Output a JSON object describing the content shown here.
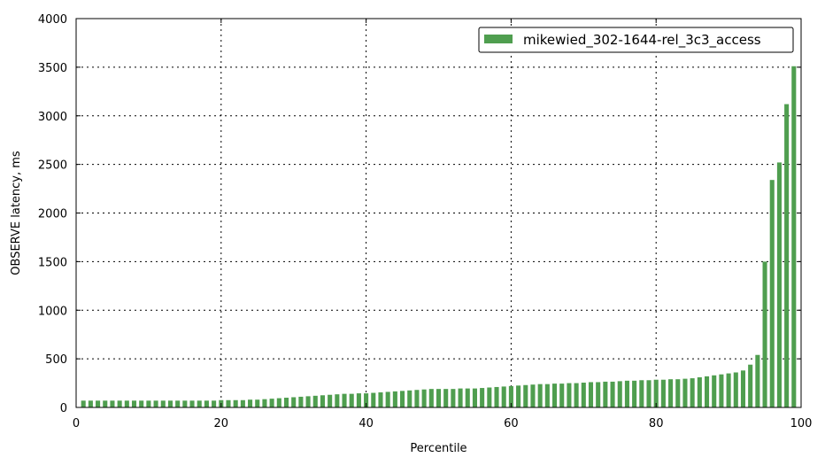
{
  "chart_data": {
    "type": "bar",
    "xlabel": "Percentile",
    "ylabel": "OBSERVE latency, ms",
    "xlim": [
      0,
      100
    ],
    "ylim": [
      0,
      4000
    ],
    "xticks": [
      0,
      20,
      40,
      60,
      80,
      100
    ],
    "yticks": [
      0,
      500,
      1000,
      1500,
      2000,
      2500,
      3000,
      3500,
      4000
    ],
    "grid": true,
    "legend_position": "top-right",
    "series": [
      {
        "name": "mikewied_302-1644-rel_3c3_access",
        "color": "#4f9e4f",
        "x": [
          1,
          2,
          3,
          4,
          5,
          6,
          7,
          8,
          9,
          10,
          11,
          12,
          13,
          14,
          15,
          16,
          17,
          18,
          19,
          20,
          21,
          22,
          23,
          24,
          25,
          26,
          27,
          28,
          29,
          30,
          31,
          32,
          33,
          34,
          35,
          36,
          37,
          38,
          39,
          40,
          41,
          42,
          43,
          44,
          45,
          46,
          47,
          48,
          49,
          50,
          51,
          52,
          53,
          54,
          55,
          56,
          57,
          58,
          59,
          60,
          61,
          62,
          63,
          64,
          65,
          66,
          67,
          68,
          69,
          70,
          71,
          72,
          73,
          74,
          75,
          76,
          77,
          78,
          79,
          80,
          81,
          82,
          83,
          84,
          85,
          86,
          87,
          88,
          89,
          90,
          91,
          92,
          93,
          94,
          95,
          96,
          97,
          98,
          99
        ],
        "values": [
          70,
          70,
          70,
          70,
          70,
          70,
          70,
          70,
          70,
          70,
          70,
          70,
          70,
          70,
          70,
          70,
          70,
          70,
          70,
          75,
          75,
          75,
          75,
          80,
          80,
          85,
          90,
          95,
          100,
          105,
          110,
          115,
          120,
          125,
          130,
          135,
          140,
          140,
          145,
          145,
          150,
          155,
          160,
          165,
          170,
          175,
          180,
          185,
          190,
          190,
          190,
          190,
          195,
          195,
          195,
          200,
          205,
          210,
          215,
          220,
          225,
          230,
          235,
          240,
          240,
          245,
          245,
          250,
          250,
          255,
          260,
          260,
          265,
          265,
          270,
          275,
          275,
          280,
          280,
          285,
          285,
          290,
          290,
          295,
          300,
          310,
          320,
          330,
          340,
          350,
          360,
          380,
          440,
          540,
          1500,
          2340,
          2520,
          3120,
          3510
        ]
      }
    ]
  }
}
